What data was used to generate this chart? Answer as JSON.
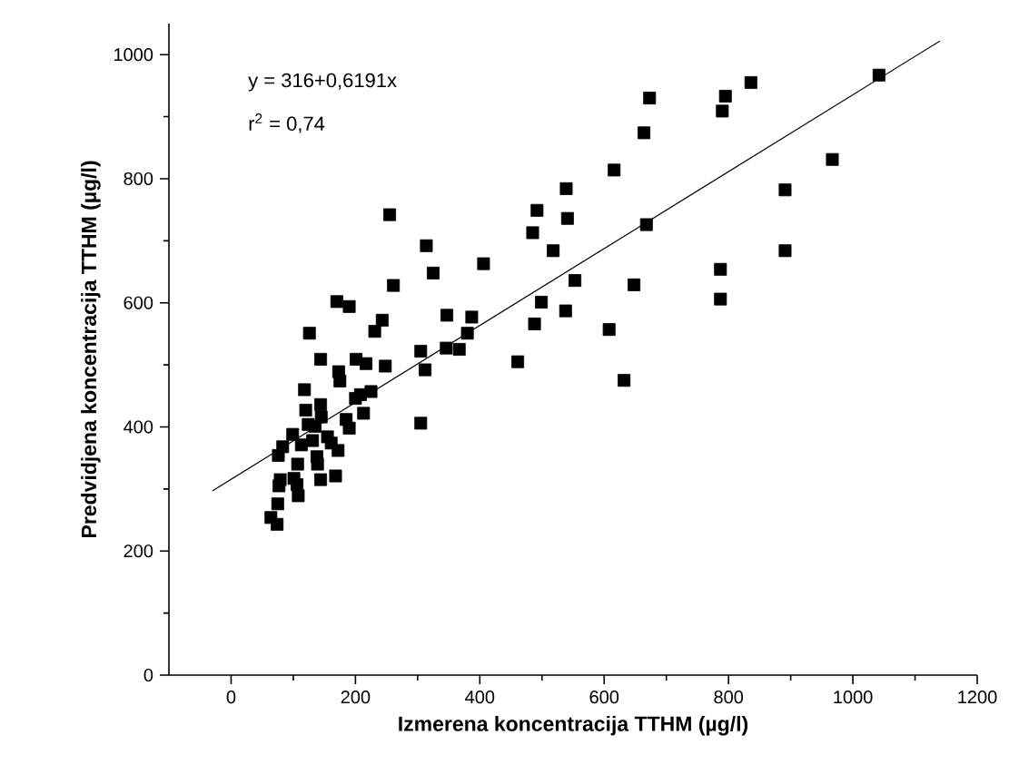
{
  "chart_data": {
    "type": "scatter",
    "xlabel": "Izmerena koncentracija TTHM (µg/l)",
    "ylabel": "Predvidjena koncentracija TTHM (µg/l)",
    "xlim": [
      -100,
      1200
    ],
    "xticks": [
      0,
      200,
      400,
      600,
      800,
      1000,
      1200
    ],
    "ylim": [
      0,
      1050
    ],
    "yticks": [
      0,
      200,
      400,
      600,
      800,
      1000
    ],
    "annotations": [
      "y = 316+0,6191x",
      "r$^{2}$ = 0,74"
    ],
    "series": [
      {
        "color": "#000000",
        "marker": "square",
        "x": [
          1042,
          673,
          795,
          790,
          836,
          664,
          616,
          967,
          539,
          492,
          541,
          485,
          891,
          668,
          518,
          406,
          891,
          553,
          787,
          648,
          499,
          787,
          387,
          538,
          488,
          380,
          608,
          367,
          461,
          632,
          255,
          314,
          325,
          261,
          347,
          170,
          190,
          243,
          126,
          231,
          144,
          201,
          217,
          173,
          175,
          248,
          118,
          305,
          312,
          346,
          305,
          120,
          144,
          145,
          124,
          200,
          208,
          225,
          213,
          185,
          190,
          99,
          83,
          76,
          113,
          131,
          135,
          155,
          161,
          172,
          138,
          107,
          101,
          108,
          77,
          75,
          64,
          74,
          144,
          168,
          79,
          106,
          139
        ],
        "values": [
          967,
          930,
          933,
          909,
          955,
          874,
          814,
          831,
          784,
          749,
          736,
          713,
          782,
          726,
          684,
          663,
          684,
          636,
          654,
          629,
          601,
          606,
          577,
          587,
          566,
          551,
          557,
          525,
          505,
          475,
          742,
          692,
          648,
          628,
          580,
          602,
          594,
          572,
          551,
          554,
          509,
          509,
          502,
          489,
          474,
          498,
          460,
          522,
          492,
          527,
          406,
          427,
          436,
          416,
          404,
          446,
          452,
          457,
          422,
          412,
          398,
          388,
          368,
          354,
          371,
          378,
          401,
          384,
          374,
          362,
          352,
          340,
          317,
          289,
          305,
          276,
          254,
          243,
          315,
          321,
          315,
          307,
          340
        ]
      },
      {
        "type": "line",
        "color": "#000000",
        "marker": "none",
        "line_style": "solid",
        "x": [
          -30,
          1140
        ],
        "values": [
          297,
          1022
        ]
      }
    ]
  }
}
